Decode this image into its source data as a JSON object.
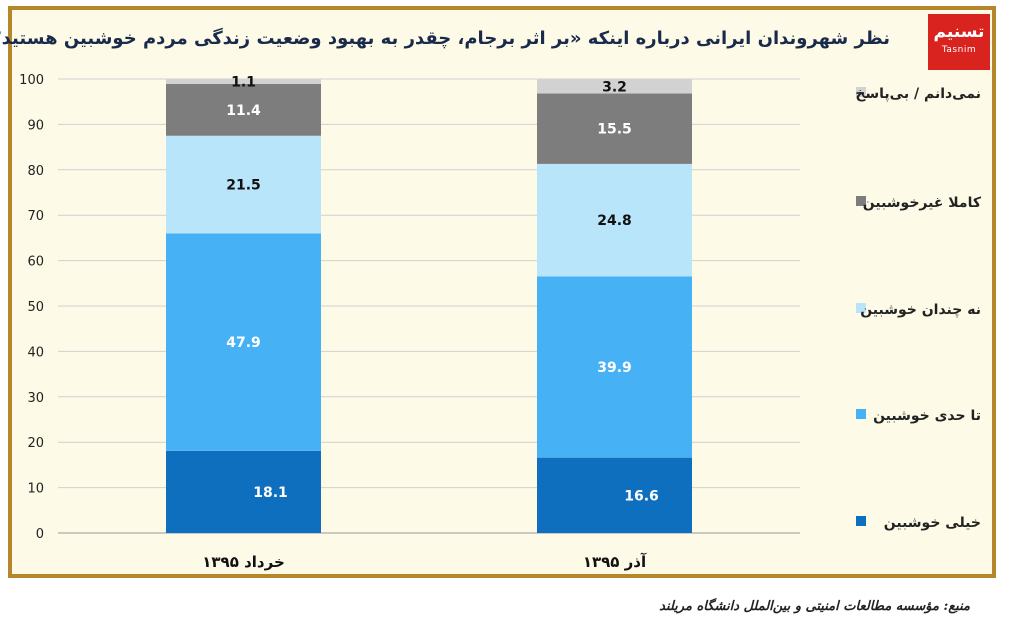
{
  "header": {
    "title": "نظر شهروندان ایرانی درباره اینکه «بر اثر برجام، چقدر به بهبود وضعیت زندگی مردم خوشبین هستید؟»",
    "logo_text": "تسنیم",
    "logo_subtext": "Tasnim"
  },
  "footer": {
    "source": "منبع: مؤسسه مطالعات امنیتی و بین‌الملل دانشگاه مریلند"
  },
  "chart_data": {
    "type": "bar",
    "stacked": true,
    "title": "نظر شهروندان ایرانی درباره اینکه «بر اثر برجام، چقدر به بهبود وضعیت زندگی مردم خوشبین هستید؟»",
    "categories": [
      "خرداد ۱۳۹۵",
      "آذر ۱۳۹۵"
    ],
    "ylim": [
      0,
      100
    ],
    "yticks": [
      0,
      10,
      20,
      30,
      40,
      50,
      60,
      70,
      80,
      90,
      100
    ],
    "grid": true,
    "legend_position": "right",
    "series": [
      {
        "name": "خیلی خوشبین",
        "values": [
          18.1,
          16.6
        ],
        "color": "#0e6fbf",
        "label_color": "#ffffff"
      },
      {
        "name": "تا حدی خوشبین",
        "values": [
          47.9,
          39.9
        ],
        "color": "#46b1f5",
        "label_color": "#ffffff"
      },
      {
        "name": "نه چندان خوشبین",
        "values": [
          21.5,
          24.8
        ],
        "color": "#b9e5fb",
        "label_color": "#111111"
      },
      {
        "name": "کاملا غیرخوشبین",
        "values": [
          11.4,
          15.5
        ],
        "color": "#7d7d7d",
        "label_color": "#ffffff"
      },
      {
        "name": "نمی‌دانم / بی‌پاسخ",
        "values": [
          1.1,
          3.2
        ],
        "color": "#d2d2d2",
        "label_color": "#111111"
      }
    ]
  }
}
